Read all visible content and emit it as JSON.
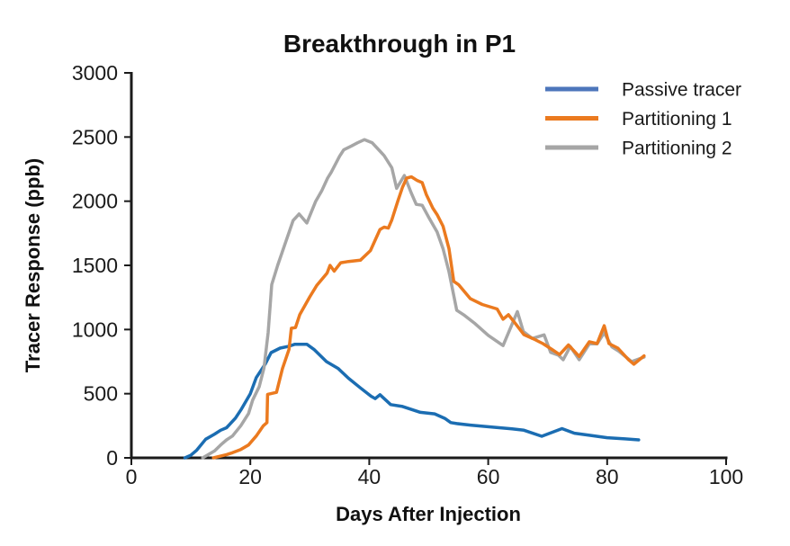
{
  "chart_data": {
    "type": "line",
    "title": "Breakthrough in P1",
    "xlabel": "Days After Injection",
    "ylabel": "Tracer Response (ppb)",
    "xlim": [
      0,
      100
    ],
    "ylim": [
      0,
      3000
    ],
    "xticks": [
      0,
      20,
      40,
      60,
      80,
      100
    ],
    "yticks": [
      0,
      500,
      1000,
      1500,
      2000,
      2500,
      3000
    ],
    "grid": false,
    "legend_position": "upper right",
    "background_color": "#ffffff",
    "axis_color": "#1a1a1a",
    "series": [
      {
        "name": "Passive tracer",
        "color": "#1B6DB2",
        "legend_color": "#4D76BB",
        "points": [
          [
            9,
            0
          ],
          [
            10,
            20
          ],
          [
            11,
            60
          ],
          [
            12.5,
            145
          ],
          [
            14,
            185
          ],
          [
            15,
            215
          ],
          [
            16,
            235
          ],
          [
            17.5,
            310
          ],
          [
            18.5,
            380
          ],
          [
            20,
            500
          ],
          [
            21,
            625
          ],
          [
            22.5,
            730
          ],
          [
            23.5,
            820
          ],
          [
            25,
            855
          ],
          [
            26.5,
            870
          ],
          [
            27.5,
            885
          ],
          [
            29.5,
            885
          ],
          [
            30.7,
            845
          ],
          [
            32.8,
            750
          ],
          [
            34.8,
            695
          ],
          [
            36.5,
            620
          ],
          [
            38.5,
            545
          ],
          [
            40.3,
            480
          ],
          [
            41,
            462
          ],
          [
            41.8,
            492
          ],
          [
            43.6,
            415
          ],
          [
            45.6,
            400
          ],
          [
            48.6,
            355
          ],
          [
            51,
            343
          ],
          [
            52.7,
            308
          ],
          [
            53.7,
            275
          ],
          [
            54.7,
            267
          ],
          [
            57,
            255
          ],
          [
            61,
            238
          ],
          [
            64,
            226
          ],
          [
            66,
            215
          ],
          [
            69,
            168
          ],
          [
            72.4,
            228
          ],
          [
            74.5,
            192
          ],
          [
            77,
            176
          ],
          [
            80,
            157
          ],
          [
            83,
            148
          ],
          [
            85.3,
            140
          ]
        ]
      },
      {
        "name": "Partitioning 1",
        "color": "#EB7A1F",
        "legend_color": "#EB7A1F",
        "points": [
          [
            13.8,
            0
          ],
          [
            16,
            25
          ],
          [
            17,
            40
          ],
          [
            18.4,
            65
          ],
          [
            19.7,
            100
          ],
          [
            21,
            170
          ],
          [
            22.2,
            250
          ],
          [
            22.8,
            275
          ],
          [
            22.9,
            495
          ],
          [
            24.4,
            510
          ],
          [
            25.4,
            695
          ],
          [
            26.5,
            845
          ],
          [
            26.9,
            1010
          ],
          [
            27.6,
            1015
          ],
          [
            28.3,
            1115
          ],
          [
            30,
            1255
          ],
          [
            31.2,
            1345
          ],
          [
            32.9,
            1440
          ],
          [
            33.4,
            1500
          ],
          [
            34.1,
            1455
          ],
          [
            35.2,
            1520
          ],
          [
            36.5,
            1530
          ],
          [
            38.5,
            1540
          ],
          [
            40.2,
            1615
          ],
          [
            41.8,
            1780
          ],
          [
            42.5,
            1798
          ],
          [
            43.2,
            1790
          ],
          [
            43.8,
            1855
          ],
          [
            44.8,
            2000
          ],
          [
            45.6,
            2110
          ],
          [
            46.3,
            2180
          ],
          [
            47.1,
            2190
          ],
          [
            48.1,
            2160
          ],
          [
            48.9,
            2145
          ],
          [
            49.6,
            2050
          ],
          [
            50.7,
            1945
          ],
          [
            51.4,
            1895
          ],
          [
            52.4,
            1805
          ],
          [
            53.4,
            1630
          ],
          [
            54.2,
            1375
          ],
          [
            55,
            1350
          ],
          [
            57,
            1240
          ],
          [
            59,
            1195
          ],
          [
            61.5,
            1160
          ],
          [
            62.5,
            1080
          ],
          [
            63.4,
            1115
          ],
          [
            64.6,
            1045
          ],
          [
            66,
            960
          ],
          [
            67.7,
            925
          ],
          [
            69.2,
            890
          ],
          [
            70.7,
            845
          ],
          [
            72,
            805
          ],
          [
            73.5,
            880
          ],
          [
            75.3,
            790
          ],
          [
            77,
            905
          ],
          [
            78.3,
            890
          ],
          [
            79.5,
            1030
          ],
          [
            80.3,
            890
          ],
          [
            81.8,
            855
          ],
          [
            83.6,
            765
          ],
          [
            84.5,
            730
          ],
          [
            86.2,
            795
          ]
        ]
      },
      {
        "name": "Partitioning 2",
        "color": "#A6A6A6",
        "legend_color": "#A6A6A6",
        "points": [
          [
            12,
            0
          ],
          [
            14,
            55
          ],
          [
            15,
            100
          ],
          [
            16,
            140
          ],
          [
            17,
            170
          ],
          [
            18.4,
            250
          ],
          [
            19.7,
            345
          ],
          [
            20.4,
            450
          ],
          [
            21.5,
            555
          ],
          [
            22.3,
            700
          ],
          [
            23,
            975
          ],
          [
            23.6,
            1350
          ],
          [
            24.6,
            1500
          ],
          [
            26,
            1690
          ],
          [
            27.2,
            1850
          ],
          [
            28.2,
            1900
          ],
          [
            29.5,
            1830
          ],
          [
            31,
            2000
          ],
          [
            32,
            2080
          ],
          [
            33,
            2180
          ],
          [
            33.6,
            2225
          ],
          [
            35,
            2350
          ],
          [
            35.7,
            2400
          ],
          [
            37,
            2430
          ],
          [
            38,
            2455
          ],
          [
            39.2,
            2480
          ],
          [
            40.5,
            2455
          ],
          [
            41.8,
            2390
          ],
          [
            42.5,
            2355
          ],
          [
            43.8,
            2260
          ],
          [
            44.6,
            2100
          ],
          [
            45.9,
            2200
          ],
          [
            47.1,
            2060
          ],
          [
            47.9,
            1975
          ],
          [
            48.9,
            1968
          ],
          [
            50.1,
            1865
          ],
          [
            51.4,
            1760
          ],
          [
            52.4,
            1630
          ],
          [
            53.4,
            1450
          ],
          [
            54.7,
            1150
          ],
          [
            56,
            1110
          ],
          [
            57.8,
            1045
          ],
          [
            60,
            955
          ],
          [
            62.5,
            875
          ],
          [
            64.9,
            1140
          ],
          [
            65.9,
            985
          ],
          [
            67.4,
            930
          ],
          [
            69.4,
            958
          ],
          [
            70.5,
            822
          ],
          [
            71.8,
            800
          ],
          [
            72.6,
            765
          ],
          [
            73.8,
            868
          ],
          [
            75.3,
            765
          ],
          [
            77,
            888
          ],
          [
            78.3,
            888
          ],
          [
            79.5,
            975
          ],
          [
            80.8,
            865
          ],
          [
            82,
            830
          ],
          [
            84.1,
            750
          ],
          [
            86.2,
            785
          ]
        ]
      }
    ]
  }
}
